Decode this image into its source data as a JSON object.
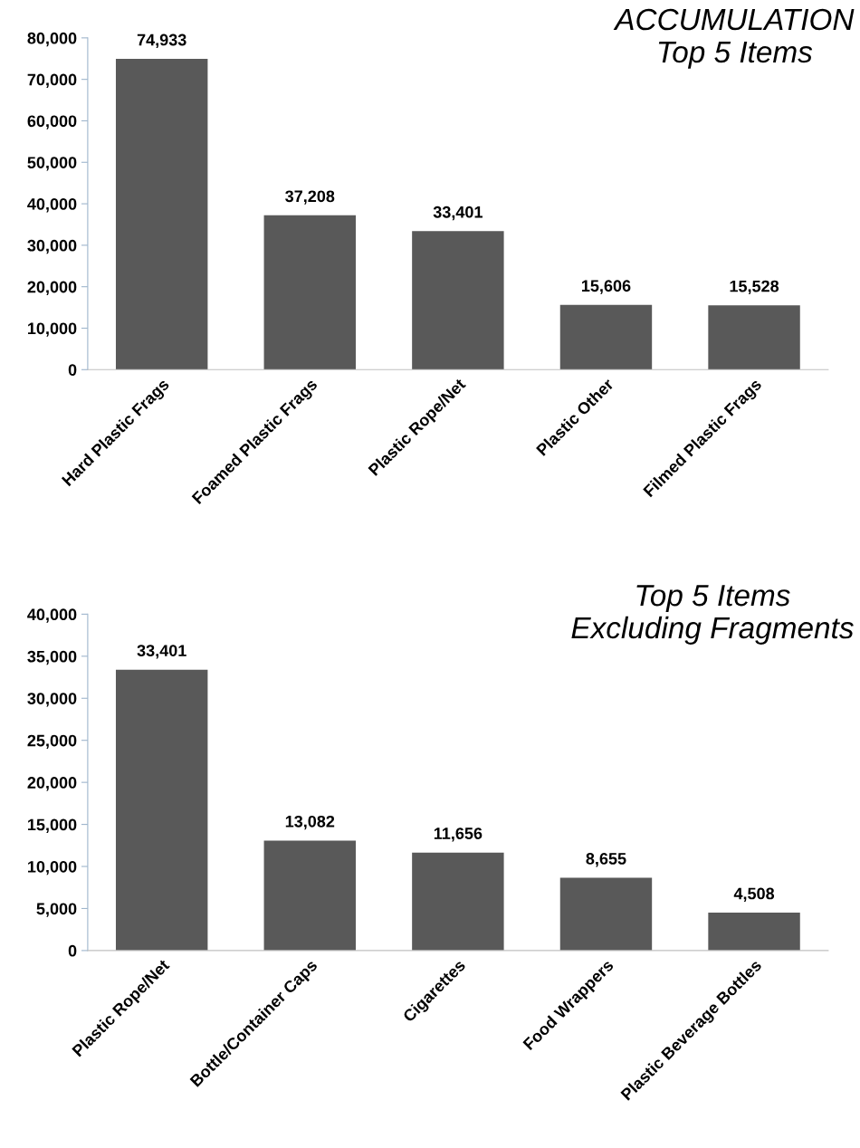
{
  "chart_data": [
    {
      "type": "bar",
      "title": "ACCUMULATION\nTop 5 Items",
      "categories": [
        "Hard Plastic Frags",
        "Foamed Plastic Frags",
        "Plastic Rope/Net",
        "Plastic Other",
        "Filmed Plastic Frags"
      ],
      "values": [
        74933,
        37208,
        33401,
        15606,
        15528
      ],
      "color": "#595959",
      "ylim": [
        0,
        80000
      ],
      "yticks": [
        {
          "value": 0,
          "label": "0"
        },
        {
          "value": 10000,
          "label": "10,000"
        },
        {
          "value": 20000,
          "label": "20,000"
        },
        {
          "value": 30000,
          "label": "30,000"
        },
        {
          "value": 40000,
          "label": "40,000"
        },
        {
          "value": 50000,
          "label": "50,000"
        },
        {
          "value": 60000,
          "label": "60,000"
        },
        {
          "value": 70000,
          "label": "70,000"
        },
        {
          "value": 80000,
          "label": "80,000"
        }
      ],
      "data_labels": true,
      "value_labels": [
        "74,933",
        "37,208",
        "33,401",
        "15,606",
        "15,528"
      ],
      "grid": false,
      "legend": false
    },
    {
      "type": "bar",
      "title": "Top 5 Items\nExcluding Fragments",
      "categories": [
        "Plastic Rope/Net",
        "Bottle/Container Caps",
        "Cigarettes",
        "Food Wrappers",
        "Plastic Beverage Bottles"
      ],
      "values": [
        33401,
        13082,
        11656,
        8655,
        4508
      ],
      "color": "#595959",
      "ylim": [
        0,
        40000
      ],
      "yticks": [
        {
          "value": 0,
          "label": "0"
        },
        {
          "value": 5000,
          "label": "5,000"
        },
        {
          "value": 10000,
          "label": "10,000"
        },
        {
          "value": 15000,
          "label": "15,000"
        },
        {
          "value": 20000,
          "label": "20,000"
        },
        {
          "value": 25000,
          "label": "25,000"
        },
        {
          "value": 30000,
          "label": "30,000"
        },
        {
          "value": 35000,
          "label": "35,000"
        },
        {
          "value": 40000,
          "label": "40,000"
        }
      ],
      "data_labels": true,
      "value_labels": [
        "33,401",
        "13,082",
        "11,656",
        "8,655",
        "4,508"
      ],
      "grid": false,
      "legend": false
    }
  ]
}
